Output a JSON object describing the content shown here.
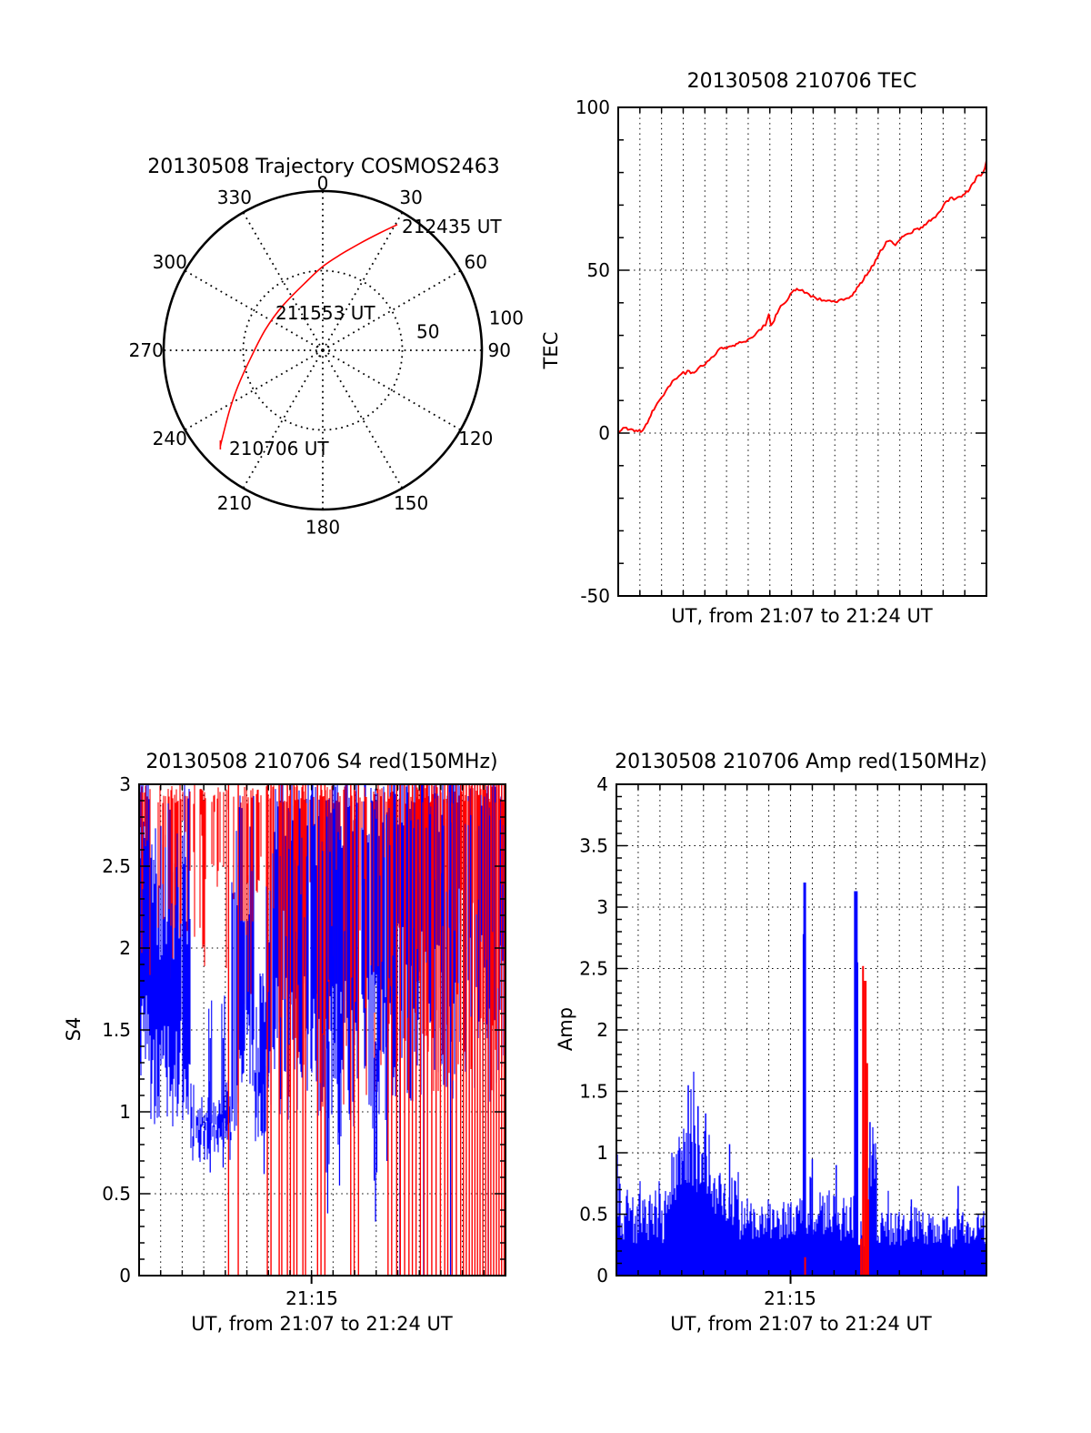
{
  "figure": {
    "background": "#ffffff",
    "frame_color": "#000000",
    "grid_color": "#000000",
    "accent_red": "#ff0000",
    "accent_blue": "#0000ff"
  },
  "chart_data": [
    {
      "id": "trajectory",
      "type": "polar_track",
      "title": "20130508 Trajectory COSMOS2463",
      "grid": "dotted",
      "radial_max": 100,
      "radial_rings": [
        50,
        100
      ],
      "radial_tick_labels": [
        "50",
        "100"
      ],
      "azimuth_tick_labels": [
        "0",
        "30",
        "60",
        "90",
        "120",
        "150",
        "180",
        "210",
        "240",
        "270",
        "300",
        "330"
      ],
      "azimuth_step_deg": 30,
      "track_color": "#ff0000",
      "points_az_deg_r": [
        [
          227,
          88
        ],
        [
          237,
          70
        ],
        [
          247,
          58
        ],
        [
          263,
          46
        ],
        [
          290,
          38.3
        ],
        [
          319,
          37.7
        ],
        [
          348,
          45
        ],
        [
          0,
          52.6
        ],
        [
          9.3,
          60
        ],
        [
          18.9,
          70.7
        ],
        [
          26,
          82
        ],
        [
          30.7,
          91.8
        ]
      ],
      "annotations": [
        {
          "text": "212435 UT",
          "x": 442,
          "y": 256
        },
        {
          "text": "211553 UT",
          "x": 303,
          "y": 351
        },
        {
          "text": "210706 UT",
          "x": 252,
          "y": 500
        }
      ]
    },
    {
      "id": "tec",
      "type": "line",
      "title": "20130508 210706 TEC",
      "ylabel": "TEC",
      "xlabel": "UT, from 21:07 to 21:24 UT",
      "x_start": "21:07",
      "x_end": "21:24",
      "x_minutes": 17,
      "ylim": [
        -50,
        100
      ],
      "yticks": [
        {
          "v": 100,
          "label": "100"
        },
        {
          "v": 50,
          "label": "50"
        },
        {
          "v": 0,
          "label": "0"
        },
        {
          "v": -50,
          "label": "-50"
        }
      ],
      "hgrid": [
        0,
        50
      ],
      "minor_y_step": 10,
      "line_color": "#ff0000",
      "points_min_tec": [
        [
          0,
          0.3
        ],
        [
          0.15,
          1.2
        ],
        [
          0.3,
          1.8
        ],
        [
          0.45,
          1.4
        ],
        [
          0.6,
          0.8
        ],
        [
          0.75,
          0.4
        ],
        [
          0.9,
          0.9
        ],
        [
          1.05,
          0.6
        ],
        [
          1.2,
          1.8
        ],
        [
          1.35,
          3.2
        ],
        [
          1.5,
          5.5
        ],
        [
          1.65,
          7.5
        ],
        [
          1.8,
          9.2
        ],
        [
          2,
          11
        ],
        [
          2.2,
          13
        ],
        [
          2.4,
          14.8
        ],
        [
          2.6,
          16.3
        ],
        [
          2.8,
          17.6
        ],
        [
          3,
          19
        ],
        [
          3.1,
          18.4
        ],
        [
          3.2,
          19.6
        ],
        [
          3.35,
          17.9
        ],
        [
          3.5,
          18.9
        ],
        [
          3.7,
          19.9
        ],
        [
          3.9,
          20.8
        ],
        [
          4.1,
          21.7
        ],
        [
          4.3,
          22.9
        ],
        [
          4.5,
          24.3
        ],
        [
          4.7,
          25.7
        ],
        [
          4.85,
          26.1
        ],
        [
          5,
          25.8
        ],
        [
          5.15,
          26.4
        ],
        [
          5.3,
          26.7
        ],
        [
          5.45,
          27.2
        ],
        [
          5.6,
          27.7
        ],
        [
          5.8,
          28.2
        ],
        [
          6,
          28.7
        ],
        [
          6.2,
          29.6
        ],
        [
          6.4,
          30.6
        ],
        [
          6.6,
          32
        ],
        [
          6.8,
          33.4
        ],
        [
          6.95,
          36.5
        ],
        [
          7.05,
          33.4
        ],
        [
          7.2,
          34.6
        ],
        [
          7.35,
          37.2
        ],
        [
          7.5,
          38.6
        ],
        [
          7.65,
          39.9
        ],
        [
          7.8,
          41.1
        ],
        [
          7.95,
          42.5
        ],
        [
          8.1,
          43.8
        ],
        [
          8.25,
          44.3
        ],
        [
          8.4,
          44.1
        ],
        [
          8.6,
          43.3
        ],
        [
          8.8,
          42.4
        ],
        [
          9,
          41.7
        ],
        [
          9.2,
          41.2
        ],
        [
          9.4,
          40.9
        ],
        [
          9.6,
          40.7
        ],
        [
          9.85,
          40.4
        ],
        [
          10.1,
          40.6
        ],
        [
          10.3,
          40.9
        ],
        [
          10.5,
          41.3
        ],
        [
          10.65,
          41.7
        ],
        [
          10.8,
          42.3
        ],
        [
          10.95,
          43.7
        ],
        [
          11.1,
          45.2
        ],
        [
          11.25,
          46.6
        ],
        [
          11.4,
          48
        ],
        [
          11.55,
          49.4
        ],
        [
          11.7,
          50.9
        ],
        [
          11.8,
          52
        ],
        [
          11.95,
          53.9
        ],
        [
          12.1,
          55.8
        ],
        [
          12.2,
          56.6
        ],
        [
          12.3,
          57.9
        ],
        [
          12.45,
          58.9
        ],
        [
          12.55,
          59.4
        ],
        [
          12.7,
          58.3
        ],
        [
          12.8,
          57.9
        ],
        [
          12.95,
          59.2
        ],
        [
          13.1,
          60.6
        ],
        [
          13.25,
          61.1
        ],
        [
          13.4,
          61.4
        ],
        [
          13.5,
          60.9
        ],
        [
          13.65,
          62.4
        ],
        [
          13.75,
          63.1
        ],
        [
          13.9,
          62.5
        ],
        [
          14.05,
          63.2
        ],
        [
          14.2,
          64.2
        ],
        [
          14.35,
          65
        ],
        [
          14.5,
          65.6
        ],
        [
          14.65,
          66.5
        ],
        [
          14.8,
          67.9
        ],
        [
          14.95,
          69.3
        ],
        [
          15.1,
          70.5
        ],
        [
          15.25,
          71.5
        ],
        [
          15.4,
          72.8
        ],
        [
          15.5,
          71.9
        ],
        [
          15.6,
          72.2
        ],
        [
          15.75,
          72.7
        ],
        [
          15.85,
          72.3
        ],
        [
          16,
          73.5
        ],
        [
          16.15,
          74.5
        ],
        [
          16.3,
          75.7
        ],
        [
          16.45,
          77.1
        ],
        [
          16.55,
          78.4
        ],
        [
          16.65,
          78.9
        ],
        [
          16.75,
          78.6
        ],
        [
          16.85,
          80.2
        ],
        [
          16.92,
          81.5
        ],
        [
          17,
          83.7
        ]
      ]
    },
    {
      "id": "s4",
      "type": "scintillation_noise",
      "title": "20130508 210706 S4 red(150MHz)",
      "ylabel": "S4",
      "xlabel": "UT, from 21:07 to 21:24 UT",
      "xtick": {
        "label": "21:15",
        "minute": 8
      },
      "x_start": "21:07",
      "x_end": "21:24",
      "x_minutes": 17,
      "ylim": [
        0,
        3
      ],
      "yticks": [
        {
          "v": 3,
          "label": "3"
        },
        {
          "v": 2.5,
          "label": "2.5"
        },
        {
          "v": 2,
          "label": "2"
        },
        {
          "v": 1.5,
          "label": "1.5"
        },
        {
          "v": 1,
          "label": "1"
        },
        {
          "v": 0.5,
          "label": "0.5"
        },
        {
          "v": 0,
          "label": "0"
        }
      ],
      "hgrid": [
        0.5,
        1,
        1.5,
        2,
        2.5
      ],
      "minor_y_step": 0.1,
      "seed": 20130508,
      "blue_color": "#0000ff",
      "red_color": "#ff0000",
      "blue_segments": [
        [
          0,
          0.5,
          1.5,
          0.3,
          2.85,
          0.35,
          0.95
        ],
        [
          0.5,
          2.4,
          1.25,
          0.35,
          2.45,
          0.55,
          0.92
        ],
        [
          2.4,
          4.3,
          0.82,
          0.13,
          1.03,
          0.18,
          0.95
        ],
        [
          4.3,
          4.55,
          0.95,
          0.1,
          2.5,
          0.45,
          0.9
        ],
        [
          4.55,
          5.35,
          1.35,
          0.3,
          2.55,
          0.45,
          0.9
        ],
        [
          5.35,
          5.9,
          1.0,
          0.18,
          1.55,
          0.35,
          0.9
        ],
        [
          5.9,
          6.3,
          1.2,
          0.25,
          2.3,
          0.5,
          0.9
        ],
        [
          6.3,
          8.8,
          1.4,
          0.45,
          2.8,
          0.3,
          0.88
        ],
        [
          8.8,
          11.3,
          1.35,
          0.5,
          2.85,
          0.25,
          0.85
        ],
        [
          11.3,
          17,
          1.6,
          0.55,
          2.9,
          0.2,
          0.8
        ]
      ],
      "red_segments": [
        [
          0,
          2.3,
          2.3,
          0.5,
          0.6
        ],
        [
          2.3,
          4.3,
          2.35,
          0.55,
          0.45
        ],
        [
          4.3,
          6.3,
          2.0,
          0.6,
          0.5
        ],
        [
          6.3,
          11.3,
          1.8,
          0.8,
          0.5
        ],
        [
          11.3,
          17,
          1.95,
          0.85,
          0.7
        ]
      ],
      "red_drop_minutes": [
        4.15,
        4.6,
        5.95,
        6.12,
        6.5,
        6.62,
        6.88,
        7.02,
        7.18,
        7.32,
        7.6,
        7.72,
        8.28,
        8.44,
        8.62,
        9.82,
        9.98,
        10.18,
        11.55,
        11.72,
        11.95,
        12.12,
        12.32,
        12.52,
        12.68,
        12.85,
        13.05,
        13.22,
        13.38,
        13.58,
        13.78,
        13.98,
        14.18,
        14.32,
        14.52,
        14.72,
        14.92,
        15.05,
        15.18,
        15.32,
        15.45,
        15.58,
        15.7,
        15.82,
        15.95,
        16.08,
        16.2,
        16.32,
        16.45,
        16.58,
        16.7,
        16.82,
        16.94
      ],
      "blue_drop_minutes": [
        12.1,
        13.2,
        14.45,
        16.2
      ],
      "blue_dips": [
        [
          3.3,
          0.63
        ],
        [
          3.9,
          0.66
        ],
        [
          5.8,
          0.62
        ],
        [
          8.75,
          0.38
        ],
        [
          9.3,
          0.55
        ],
        [
          10.97,
          0.33
        ],
        [
          11.5,
          0.7
        ]
      ]
    },
    {
      "id": "amp",
      "type": "amplitude_noise",
      "title": "20130508 210706 Amp red(150MHz)",
      "ylabel": "Amp",
      "xlabel": "UT, from 21:07 to 21:24 UT",
      "xtick": {
        "label": "21:15",
        "minute": 8
      },
      "x_start": "21:07",
      "x_end": "21:24",
      "x_minutes": 17,
      "ylim": [
        0,
        4
      ],
      "yticks": [
        {
          "v": 4,
          "label": "4"
        },
        {
          "v": 3.5,
          "label": "3.5"
        },
        {
          "v": 3,
          "label": "3"
        },
        {
          "v": 2.5,
          "label": "2.5"
        },
        {
          "v": 2,
          "label": "2"
        },
        {
          "v": 1.5,
          "label": "1.5"
        },
        {
          "v": 1,
          "label": "1"
        },
        {
          "v": 0.5,
          "label": "0.5"
        },
        {
          "v": 0,
          "label": "0"
        }
      ],
      "hgrid": [
        0.5,
        1,
        1.5,
        2,
        2.5,
        3,
        3.5
      ],
      "minor_y_step": 0.1,
      "seed": 50813,
      "blue_color": "#0000ff",
      "red_color": "#ff0000",
      "envelope": [
        [
          0,
          0.4,
          0.55,
          0.3
        ],
        [
          0.4,
          2.3,
          0.48,
          0.22
        ],
        [
          2.3,
          2.75,
          0.75,
          0.3
        ],
        [
          2.75,
          4.35,
          0.95,
          0.3
        ],
        [
          4.35,
          4.85,
          0.65,
          0.25
        ],
        [
          4.85,
          5.55,
          0.58,
          0.22
        ],
        [
          5.55,
          8.55,
          0.45,
          0.18
        ],
        [
          8.55,
          8.8,
          0.38,
          0.15
        ],
        [
          8.8,
          10.9,
          0.48,
          0.22
        ],
        [
          10.9,
          11.6,
          0.34,
          0.12
        ],
        [
          11.6,
          11.95,
          0.8,
          0.3
        ],
        [
          11.95,
          13.5,
          0.38,
          0.14
        ],
        [
          13.5,
          14.2,
          0.42,
          0.16
        ],
        [
          14.2,
          15.5,
          0.36,
          0.14
        ],
        [
          15.5,
          17,
          0.4,
          0.15
        ]
      ],
      "spikes": [
        {
          "t": 3.3,
          "v": 1.55,
          "color": "blue",
          "w": 1.5
        },
        {
          "t": 3.75,
          "v": 1.38,
          "color": "blue",
          "w": 1.5
        },
        {
          "t": 4.1,
          "v": 1.32,
          "color": "blue",
          "w": 1.5
        },
        {
          "t": 5.2,
          "v": 1.07,
          "color": "blue",
          "w": 1.5
        },
        {
          "t": 8.6,
          "v": 2.78,
          "color": "blue",
          "w": 2
        },
        {
          "t": 8.65,
          "v": 3.2,
          "color": "blue",
          "w": 3
        },
        {
          "t": 9.0,
          "v": 0.95,
          "color": "blue",
          "w": 1.5
        },
        {
          "t": 10.1,
          "v": 0.9,
          "color": "blue",
          "w": 1.5
        },
        {
          "t": 11.0,
          "v": 3.13,
          "color": "blue",
          "w": 4
        },
        {
          "t": 11.07,
          "v": 2.55,
          "color": "blue",
          "w": 2
        },
        {
          "t": 11.65,
          "v": 1.25,
          "color": "blue",
          "w": 1.5
        },
        {
          "t": 13.55,
          "v": 0.62,
          "color": "blue",
          "w": 1.5
        },
        {
          "t": 15.7,
          "v": 0.73,
          "color": "blue",
          "w": 1.5
        },
        {
          "t": 8.67,
          "v": 0.15,
          "color": "red",
          "w": 2
        },
        {
          "t": 11.24,
          "v": 0.3,
          "color": "red",
          "w": 2
        },
        {
          "t": 11.33,
          "v": 2.52,
          "color": "red",
          "w": 2
        },
        {
          "t": 11.43,
          "v": 2.4,
          "color": "red",
          "w": 3
        },
        {
          "t": 11.52,
          "v": 1.73,
          "color": "red",
          "w": 2
        },
        {
          "t": 11.58,
          "v": 0.62,
          "color": "red",
          "w": 1.5
        }
      ]
    }
  ]
}
